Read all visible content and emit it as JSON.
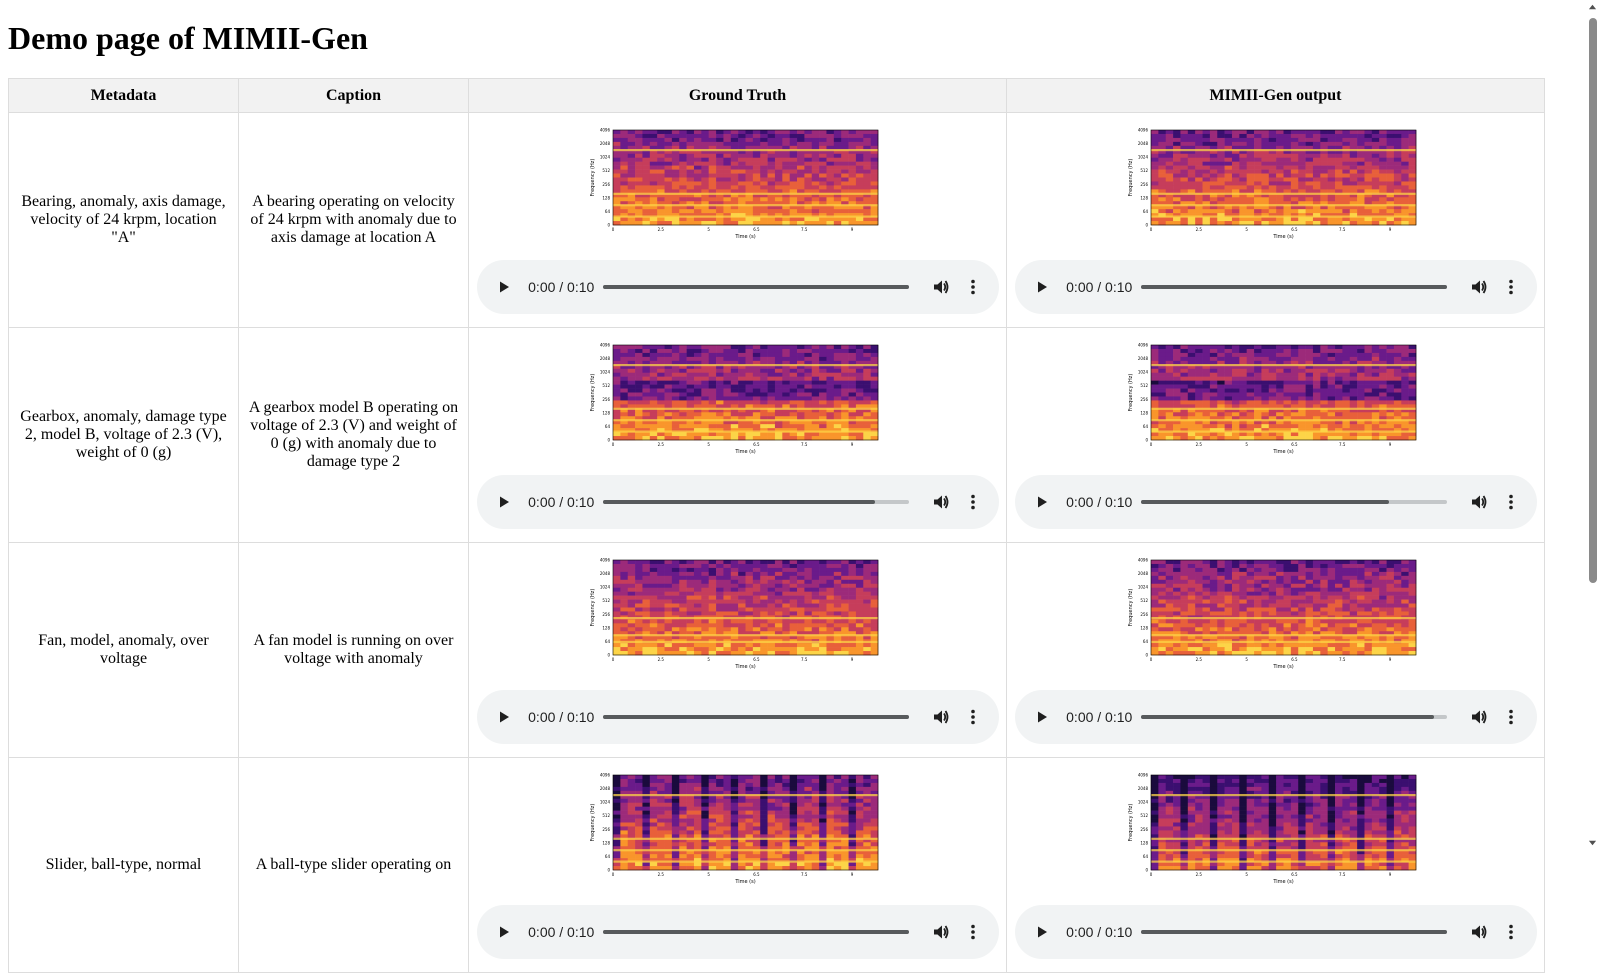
{
  "page": {
    "title": "Demo page of MIMII-Gen"
  },
  "table": {
    "headers": [
      "Metadata",
      "Caption",
      "Ground Truth",
      "MIMII-Gen output"
    ],
    "rows": [
      {
        "metadata": "Bearing, anomaly, axis damage, velocity of 24 krpm, location \"A\"",
        "caption": "A bearing operating on velocity of 24 krpm with anomaly due to axis damage at location A",
        "gt_audio": {
          "time": "0:00 / 0:10",
          "progress": 1.0
        },
        "gen_audio": {
          "time": "0:00 / 0:10",
          "progress": 1.0
        }
      },
      {
        "metadata": "Gearbox, anomaly, damage type 2, model B, voltage of 2.3 (V), weight of 0 (g)",
        "caption": "A gearbox model B operating on voltage of 2.3 (V) and weight of 0 (g) with anomaly due to damage type 2",
        "gt_audio": {
          "time": "0:00 / 0:10",
          "progress": 0.89
        },
        "gen_audio": {
          "time": "0:00 / 0:10",
          "progress": 0.81
        }
      },
      {
        "metadata": "Fan, model, anomaly, over voltage",
        "caption": "A fan model is running on over voltage with anomaly",
        "gt_audio": {
          "time": "0:00 / 0:10",
          "progress": 1.0
        },
        "gen_audio": {
          "time": "0:00 / 0:10",
          "progress": 0.96
        }
      },
      {
        "metadata": "Slider, ball-type, normal",
        "caption": "A ball-type slider operating on",
        "gt_audio": {
          "time": "0:00 / 0:10",
          "progress": 1.0
        },
        "gen_audio": {
          "time": "0:00 / 0:10",
          "progress": 1.0
        }
      }
    ]
  },
  "spectrogram": {
    "ylabel": "Frequency (Hz)",
    "xlabel": "Time (s)",
    "yticks": [
      "0",
      "64",
      "128",
      "256",
      "512",
      "1024",
      "2048",
      "4096"
    ],
    "xticks": [
      "0",
      "2.5",
      "5",
      "6.5",
      "7.5",
      "9"
    ]
  },
  "icons": {
    "play": "play-icon",
    "volume": "volume-icon",
    "more": "more-options-icon"
  },
  "colors": {
    "header_bg": "#f2f2f2",
    "player_bg": "#f1f3f4",
    "border": "#dddddd"
  }
}
